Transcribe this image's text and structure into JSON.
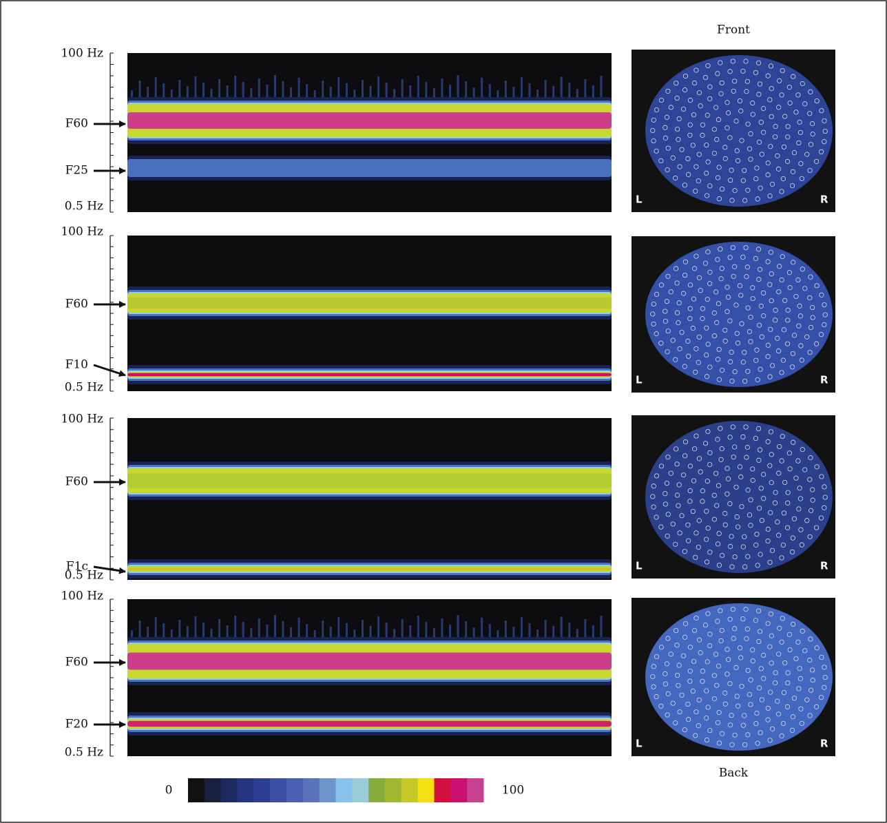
{
  "header": {
    "front": "Front",
    "back": "Back"
  },
  "panels": [
    {
      "top_label": "100 Hz",
      "bottom_label": "0.5 Hz",
      "markers": [
        "F60",
        "F25"
      ],
      "topo_left": "L",
      "topo_right": "R"
    },
    {
      "top_label": "100 Hz",
      "bottom_label": "0.5 Hz",
      "markers": [
        "F60",
        "F10"
      ],
      "topo_left": "L",
      "topo_right": "R"
    },
    {
      "top_label": "100 Hz",
      "bottom_label": "0.5 Hz",
      "markers": [
        "F60",
        "F1c"
      ],
      "topo_left": "L",
      "topo_right": "R"
    },
    {
      "top_label": "100 Hz",
      "bottom_label": "0.5 Hz",
      "markers": [
        "F60",
        "F20"
      ],
      "topo_left": "L",
      "topo_right": "R"
    }
  ],
  "colorbar": {
    "min_label": "0",
    "max_label": "100",
    "colors": [
      "#111111",
      "#17203c",
      "#1d2a60",
      "#24347e",
      "#2e3f92",
      "#3c4fa2",
      "#4b60b0",
      "#5a72ba",
      "#6f96cc",
      "#86c2ea",
      "#9acbd8",
      "#86ac3c",
      "#a2b830",
      "#c4c828",
      "#f2e012",
      "#d2103e",
      "#cc1070",
      "#c84090"
    ]
  }
}
